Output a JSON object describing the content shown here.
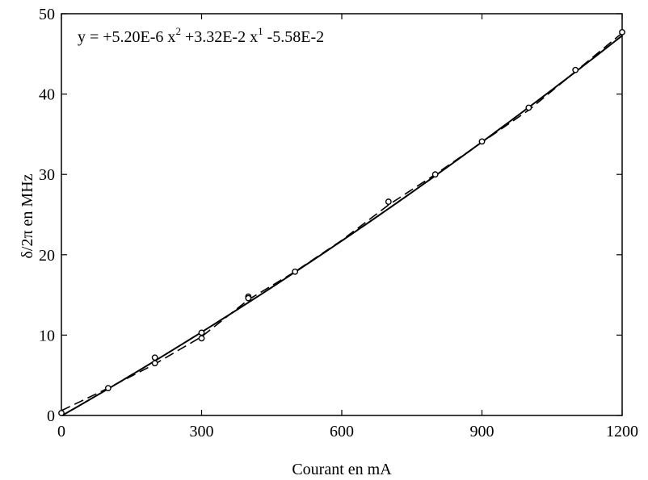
{
  "chart_data": {
    "type": "scatter",
    "xlabel": "Courant en mA",
    "ylabel": "δ/2π en MHz",
    "xlim": [
      0,
      1200
    ],
    "ylim": [
      0,
      50
    ],
    "xticks": [
      0,
      300,
      600,
      900,
      1200
    ],
    "yticks": [
      0,
      10,
      20,
      30,
      40,
      50
    ],
    "grid": false,
    "annotation": {
      "prefix": "y = +5.20E-6 x",
      "exp1": "2",
      "middle": " +3.32E-2 x",
      "exp2": "1",
      "suffix": " -5.58E-2"
    },
    "series": [
      {
        "kind": "points",
        "x": [
          0,
          100,
          200,
          200,
          300,
          300,
          400,
          400,
          500,
          700,
          800,
          900,
          1000,
          1100,
          1200
        ],
        "y": [
          0.3,
          3.4,
          7.2,
          6.5,
          9.6,
          10.3,
          14.8,
          14.6,
          17.9,
          26.6,
          30.0,
          34.1,
          38.3,
          43.0,
          47.7
        ]
      },
      {
        "kind": "fit",
        "a": 5.2e-06,
        "b": 0.0332,
        "c": -0.0558
      },
      {
        "kind": "dashed",
        "x": [
          0,
          100,
          200,
          300,
          400,
          500,
          600,
          700,
          800,
          900,
          1000,
          1100,
          1200
        ],
        "y": [
          0.6,
          3.4,
          6.4,
          9.8,
          14.4,
          17.9,
          21.8,
          26.2,
          30.0,
          34.0,
          38.0,
          42.8,
          47.6
        ]
      }
    ]
  }
}
